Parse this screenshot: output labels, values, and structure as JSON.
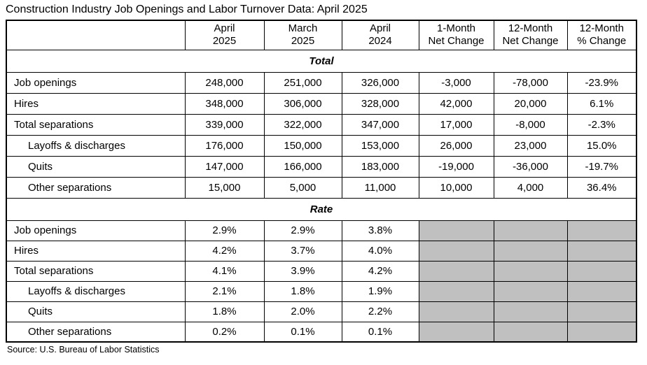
{
  "title": "Construction Industry Job Openings and Labor Turnover Data: April 2025",
  "source": "Source: U.S. Bureau of Labor Statistics",
  "colors": {
    "border": "#000000",
    "text": "#000000",
    "background": "#ffffff",
    "shaded_cell": "#c0c0c0"
  },
  "table": {
    "columns": [
      "",
      "April\n2025",
      "March\n2025",
      "April\n2024",
      "1-Month\nNet Change",
      "12-Month\nNet Change",
      "12-Month\n% Change"
    ],
    "sections": [
      {
        "label": "Total",
        "rows": [
          {
            "label": "Job openings",
            "indent": false,
            "values": [
              "248,000",
              "251,000",
              "326,000",
              "-3,000",
              "-78,000",
              "-23.9%"
            ]
          },
          {
            "label": "Hires",
            "indent": false,
            "values": [
              "348,000",
              "306,000",
              "328,000",
              "42,000",
              "20,000",
              "6.1%"
            ]
          },
          {
            "label": "Total separations",
            "indent": false,
            "values": [
              "339,000",
              "322,000",
              "347,000",
              "17,000",
              "-8,000",
              "-2.3%"
            ]
          },
          {
            "label": "Layoffs & discharges",
            "indent": true,
            "values": [
              "176,000",
              "150,000",
              "153,000",
              "26,000",
              "23,000",
              "15.0%"
            ]
          },
          {
            "label": "Quits",
            "indent": true,
            "values": [
              "147,000",
              "166,000",
              "183,000",
              "-19,000",
              "-36,000",
              "-19.7%"
            ]
          },
          {
            "label": "Other separations",
            "indent": true,
            "values": [
              "15,000",
              "5,000",
              "11,000",
              "10,000",
              "4,000",
              "36.4%"
            ]
          }
        ]
      },
      {
        "label": "Rate",
        "rows": [
          {
            "label": "Job openings",
            "indent": false,
            "values": [
              "2.9%",
              "2.9%",
              "3.8%",
              null,
              null,
              null
            ]
          },
          {
            "label": "Hires",
            "indent": false,
            "values": [
              "4.2%",
              "3.7%",
              "4.0%",
              null,
              null,
              null
            ]
          },
          {
            "label": "Total separations",
            "indent": false,
            "values": [
              "4.1%",
              "3.9%",
              "4.2%",
              null,
              null,
              null
            ]
          },
          {
            "label": "Layoffs & discharges",
            "indent": true,
            "values": [
              "2.1%",
              "1.8%",
              "1.9%",
              null,
              null,
              null
            ]
          },
          {
            "label": "Quits",
            "indent": true,
            "values": [
              "1.8%",
              "2.0%",
              "2.2%",
              null,
              null,
              null
            ]
          },
          {
            "label": "Other separations",
            "indent": true,
            "values": [
              "0.2%",
              "0.1%",
              "0.1%",
              null,
              null,
              null
            ]
          }
        ]
      }
    ]
  }
}
